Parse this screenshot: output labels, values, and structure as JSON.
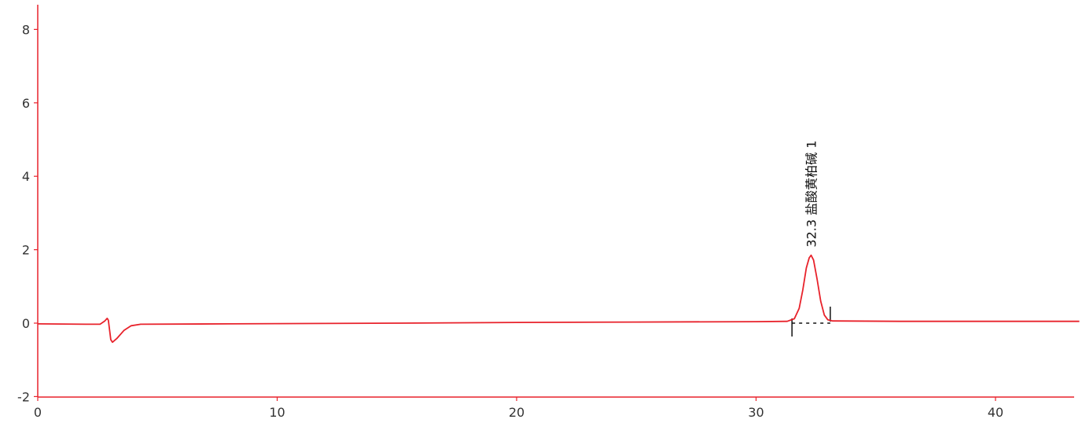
{
  "chart_data": {
    "type": "line",
    "title": "",
    "xlabel": "",
    "ylabel": "",
    "xlim": [
      0,
      43.5
    ],
    "ylim": [
      -2,
      8.5
    ],
    "x_ticks": [
      0,
      10,
      20,
      30,
      40
    ],
    "y_ticks": [
      -2,
      0,
      2,
      4,
      6,
      8
    ],
    "x_tick_labels": [
      "0",
      "10",
      "20",
      "30",
      "40"
    ],
    "y_tick_labels": [
      "-2",
      "0",
      "2",
      "4",
      "6",
      "8"
    ],
    "grid": false,
    "legend": "none",
    "series": [
      {
        "color": "#e8222b",
        "points": [
          [
            0,
            -0.02
          ],
          [
            2.0,
            -0.03
          ],
          [
            2.6,
            -0.03
          ],
          [
            2.8,
            0.06
          ],
          [
            2.9,
            0.13
          ],
          [
            2.95,
            0.08
          ],
          [
            3.05,
            -0.45
          ],
          [
            3.12,
            -0.52
          ],
          [
            3.3,
            -0.42
          ],
          [
            3.6,
            -0.2
          ],
          [
            3.9,
            -0.07
          ],
          [
            4.3,
            -0.03
          ],
          [
            8,
            -0.02
          ],
          [
            15,
            0.0
          ],
          [
            20,
            0.02
          ],
          [
            25,
            0.03
          ],
          [
            30,
            0.04
          ],
          [
            31.3,
            0.05
          ],
          [
            31.6,
            0.12
          ],
          [
            31.8,
            0.4
          ],
          [
            31.95,
            0.9
          ],
          [
            32.1,
            1.5
          ],
          [
            32.22,
            1.78
          ],
          [
            32.3,
            1.85
          ],
          [
            32.4,
            1.72
          ],
          [
            32.55,
            1.2
          ],
          [
            32.7,
            0.6
          ],
          [
            32.85,
            0.22
          ],
          [
            33.0,
            0.09
          ],
          [
            33.2,
            0.06
          ],
          [
            36,
            0.05
          ],
          [
            40,
            0.05
          ],
          [
            43.5,
            0.05
          ]
        ]
      }
    ],
    "peaks": [
      {
        "label": "32.3 盐酸黄柏碱 1",
        "x": 32.3,
        "y": 1.85,
        "start_x": 31.5,
        "end_x": 33.1
      }
    ],
    "axis_color": "#e8222b"
  }
}
